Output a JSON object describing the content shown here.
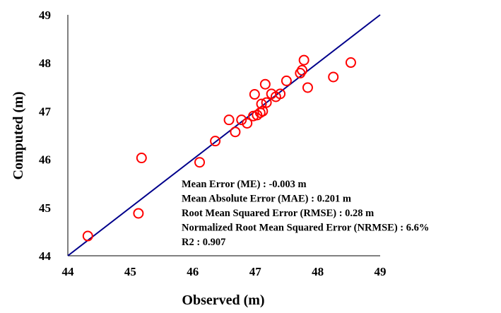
{
  "chart_data": {
    "type": "scatter",
    "title": "",
    "xlabel": "Observed  (m)",
    "ylabel": "Computed  (m)",
    "xlim": [
      44,
      49
    ],
    "ylim": [
      44,
      49
    ],
    "x_ticks": [
      "44",
      "45",
      "46",
      "47",
      "48",
      "49"
    ],
    "y_ticks": [
      "44",
      "45",
      "46",
      "47",
      "48",
      "49"
    ],
    "grid": false,
    "legend": "none",
    "marker": "open-circle",
    "marker_color": "#ff0000",
    "reference_line": {
      "type": "1:1",
      "from": [
        44,
        44
      ],
      "to": [
        49,
        49
      ],
      "color": "#00008b"
    },
    "points": [
      {
        "x": 44.32,
        "y": 44.41
      },
      {
        "x": 45.13,
        "y": 44.88
      },
      {
        "x": 45.18,
        "y": 46.03
      },
      {
        "x": 46.11,
        "y": 45.94
      },
      {
        "x": 46.36,
        "y": 46.38
      },
      {
        "x": 46.58,
        "y": 46.82
      },
      {
        "x": 46.68,
        "y": 46.57
      },
      {
        "x": 46.78,
        "y": 46.82
      },
      {
        "x": 46.87,
        "y": 46.75
      },
      {
        "x": 46.97,
        "y": 46.9
      },
      {
        "x": 47.03,
        "y": 46.92
      },
      {
        "x": 47.08,
        "y": 46.97
      },
      {
        "x": 47.12,
        "y": 47.0
      },
      {
        "x": 47.1,
        "y": 47.15
      },
      {
        "x": 47.18,
        "y": 47.18
      },
      {
        "x": 46.99,
        "y": 47.35
      },
      {
        "x": 47.16,
        "y": 47.56
      },
      {
        "x": 47.26,
        "y": 47.36
      },
      {
        "x": 47.33,
        "y": 47.3
      },
      {
        "x": 47.4,
        "y": 47.36
      },
      {
        "x": 47.5,
        "y": 47.63
      },
      {
        "x": 47.72,
        "y": 47.79
      },
      {
        "x": 47.75,
        "y": 47.85
      },
      {
        "x": 47.78,
        "y": 48.06
      },
      {
        "x": 47.84,
        "y": 47.49
      },
      {
        "x": 48.25,
        "y": 47.71
      },
      {
        "x": 48.53,
        "y": 48.01
      }
    ]
  },
  "stats": [
    "Mean Error (ME) : -0.003 m",
    "Mean Absolute Error (MAE) : 0.201 m",
    "Root Mean Squared Error (RMSE) : 0.28 m",
    "Normalized Root Mean Squared Error (NRMSE) : 6.6%",
    "R2 : 0.907"
  ]
}
